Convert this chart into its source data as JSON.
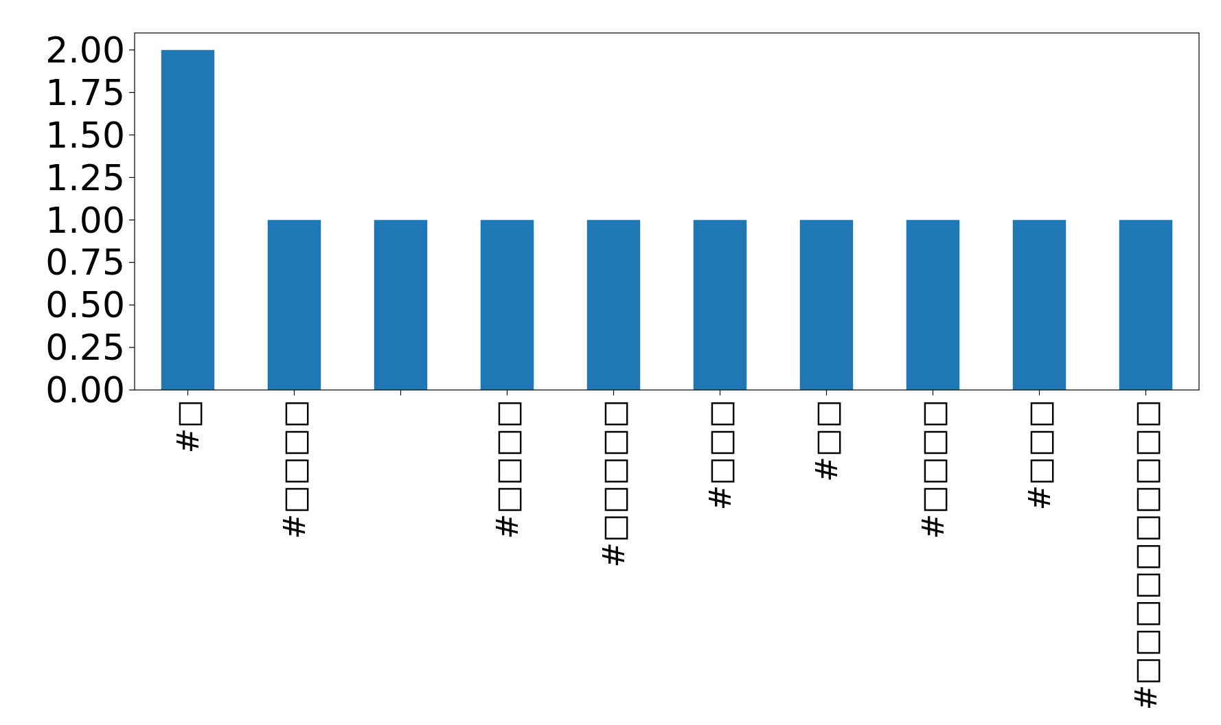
{
  "chart_data": {
    "type": "bar",
    "categories": [
      "#□",
      "#□□□□",
      null,
      "#□□□□",
      "#□□□□□",
      "#□□□",
      "#□□",
      "#□□□□",
      "#□□□",
      "#□□□□□□□□□□"
    ],
    "values": [
      2,
      1,
      1,
      1,
      1,
      1,
      1,
      1,
      1,
      1
    ],
    "color": "#1f77b4",
    "ylim": [
      0,
      2.1
    ],
    "yticks": [
      {
        "value": 0,
        "label": "0.00"
      },
      {
        "value": 0.25,
        "label": "0.25"
      },
      {
        "value": 0.5,
        "label": "0.50"
      },
      {
        "value": 0.75,
        "label": "0.75"
      },
      {
        "value": 1,
        "label": "1.00"
      },
      {
        "value": 1.25,
        "label": "1.25"
      },
      {
        "value": 1.5,
        "label": "1.50"
      },
      {
        "value": 1.75,
        "label": "1.75"
      },
      {
        "value": 2,
        "label": "2.00"
      }
    ],
    "grid": false
  }
}
